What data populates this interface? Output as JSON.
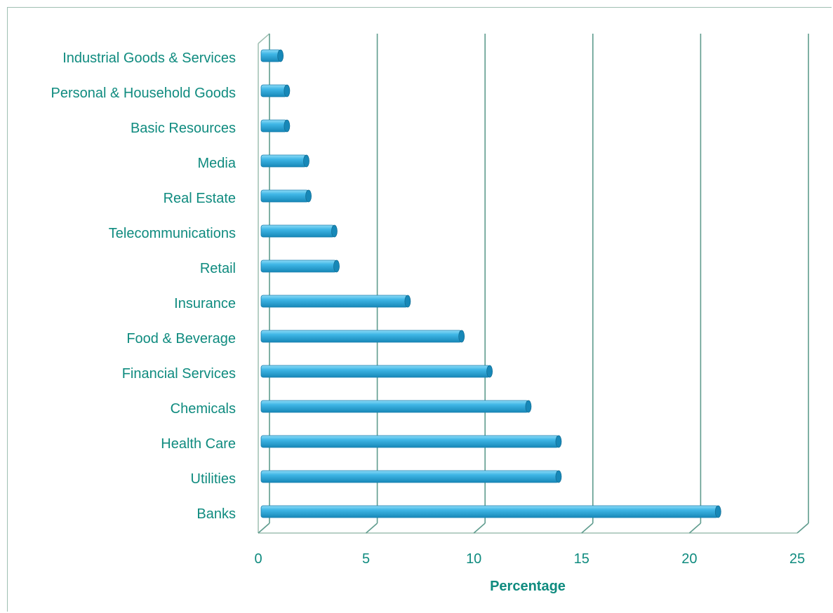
{
  "chart_data": {
    "type": "bar",
    "orientation": "horizontal",
    "categories": [
      "Industrial Goods & Services",
      "Personal & Household Goods",
      "Basic Resources",
      "Media",
      "Real Estate",
      "Telecommunications",
      "Retail",
      "Insurance",
      "Food & Beverage",
      "Financial Services",
      "Chemicals",
      "Health Care",
      "Utilities",
      "Banks"
    ],
    "values": [
      0.9,
      1.2,
      1.2,
      2.1,
      2.2,
      3.4,
      3.5,
      6.8,
      9.3,
      10.6,
      12.4,
      13.8,
      13.8,
      21.2
    ],
    "xlabel": "Percentage",
    "ylabel": "",
    "title": "",
    "xlim": [
      0,
      25
    ],
    "xticks": [
      "0",
      "5",
      "10",
      "15",
      "20",
      "25"
    ],
    "grid": "vertical",
    "legend": "none",
    "colors": {
      "bar": "#3fb6e6",
      "bar_dark": "#1788b8",
      "bar_light": "#8fdcf7",
      "grid": "#5f9c8e",
      "text": "#0f8b7f"
    }
  }
}
